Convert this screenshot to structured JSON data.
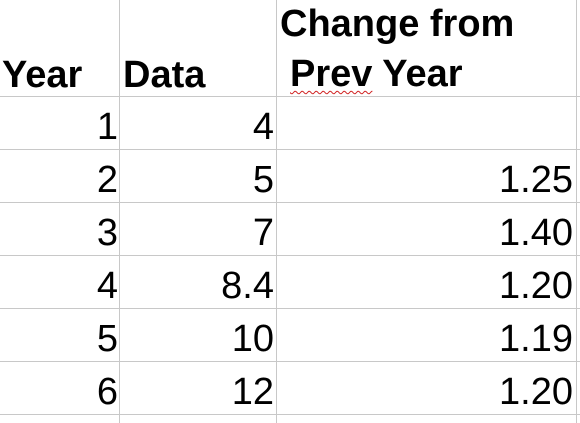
{
  "spreadsheet": {
    "headers": {
      "year": "Year",
      "data": "Data",
      "change_line1": "Change from",
      "change_line2_word1": "Prev",
      "change_line2_word2": "Year"
    },
    "rows": [
      {
        "year": "1",
        "data": "4",
        "change": ""
      },
      {
        "year": "2",
        "data": "5",
        "change": "1.25"
      },
      {
        "year": "3",
        "data": "7",
        "change": "1.40"
      },
      {
        "year": "4",
        "data": "8.4",
        "change": "1.20"
      },
      {
        "year": "5",
        "data": "10",
        "change": "1.19"
      },
      {
        "year": "6",
        "data": "12",
        "change": "1.20"
      }
    ]
  }
}
